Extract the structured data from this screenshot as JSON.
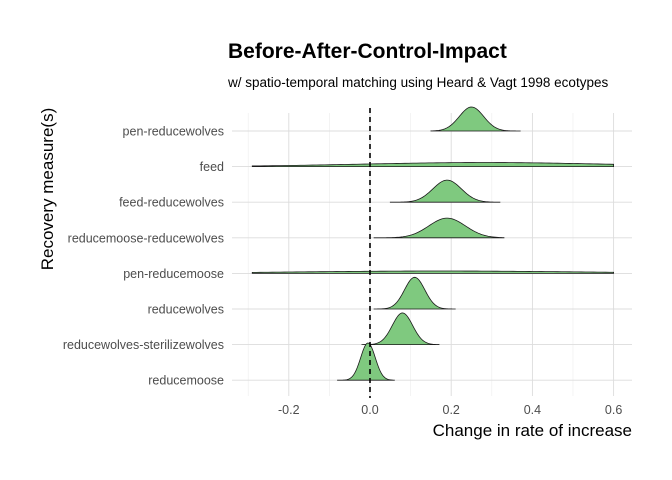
{
  "chart_data": {
    "type": "ridgeline",
    "title": "Before-After-Control-Impact",
    "subtitle": "w/ spatio-temporal matching using Heard & Vagt 1998 ecotypes",
    "xlabel": "Change in rate of increase",
    "ylabel": "Recovery measure(s)",
    "xlim": [
      -0.31,
      0.62
    ],
    "x_ticks": [
      -0.2,
      0.0,
      0.2,
      0.4,
      0.6
    ],
    "x_tick_labels": [
      "-0.2",
      "0.0",
      "0.2",
      "0.4",
      "0.6"
    ],
    "reference_line": {
      "x": 0,
      "style": "dashed"
    },
    "grid": true,
    "fill_color": "#7fc97f",
    "categories": [
      "pen-reducewolves",
      "feed",
      "feed-reducewolves",
      "reducemoose-reducewolves",
      "pen-reducemoose",
      "reducewolves",
      "reducewolves-sterilizewolves",
      "reducemoose"
    ],
    "series": [
      {
        "label": "pen-reducewolves",
        "mean": 0.25,
        "sd": 0.03,
        "range": [
          0.15,
          0.37
        ],
        "peak": 1.0
      },
      {
        "label": "feed",
        "mean": 0.28,
        "sd": 0.3,
        "range": [
          -0.29,
          0.6
        ],
        "peak": 0.17
      },
      {
        "label": "feed-reducewolves",
        "mean": 0.19,
        "sd": 0.035,
        "range": [
          0.05,
          0.32
        ],
        "peak": 0.92
      },
      {
        "label": "reducemoose-reducewolves",
        "mean": 0.19,
        "sd": 0.045,
        "range": [
          0.01,
          0.33
        ],
        "peak": 0.82
      },
      {
        "label": "pen-reducemoose",
        "mean": 0.17,
        "sd": 0.35,
        "range": [
          -0.29,
          0.6
        ],
        "peak": 0.1
      },
      {
        "label": "reducewolves",
        "mean": 0.11,
        "sd": 0.025,
        "range": [
          0.01,
          0.21
        ],
        "peak": 1.32
      },
      {
        "label": "reducewolves-sterilizewolves",
        "mean": 0.08,
        "sd": 0.025,
        "range": [
          -0.02,
          0.17
        ],
        "peak": 1.32
      },
      {
        "label": "reducemoose",
        "mean": -0.005,
        "sd": 0.018,
        "range": [
          -0.08,
          0.06
        ],
        "peak": 1.55
      }
    ]
  }
}
